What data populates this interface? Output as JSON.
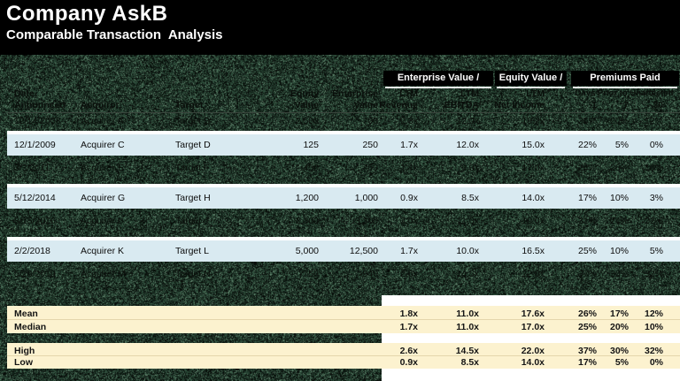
{
  "title": "Company AskB",
  "subtitle": "Comparable Transaction  Analysis",
  "colors": {
    "background": "#000000",
    "row_highlight": "#d9eaf1",
    "summary_highlight": "#fcf2cf",
    "noise_green": "#33503f",
    "header_box": "#000000",
    "header_text": "#ffffff"
  },
  "groups": {
    "enterprise": "Enterprise Value /",
    "equity": "Equity Value /",
    "premiums": "Premiums Paid"
  },
  "header": {
    "date1": "Date",
    "date2": "Announced",
    "acquiror": "Acquiror",
    "target": "Target",
    "equity1": "Equity",
    "equity2": "Value",
    "ev1": "Enterprise",
    "ev2": "Value",
    "rev1": "LTM",
    "rev2": "Revenue",
    "ebitda1": "LTM",
    "ebitda2": "EBITDA",
    "ni1": "LTM",
    "ni2": "Net Income",
    "premiums_note": "Days Prior to Unaffected",
    "d1": "1",
    "d7": "7",
    "d30": "30"
  },
  "rows": [
    {
      "hidden": true,
      "date": "12/14/2008",
      "acquirer": "Acquirer A",
      "target": "Target B",
      "equity_value": "2,500",
      "transaction_value": "700",
      "ev_revenue": "2.3x",
      "ev_ebitda": "12.0x",
      "pe": "19.7x",
      "prem_1": "26%",
      "prem_7": "20%",
      "prem_30": "12%"
    },
    {
      "hidden": false,
      "date": "12/1/2009",
      "acquirer": "Acquirer C",
      "target": "Target D",
      "equity_value": "125",
      "transaction_value": "250",
      "ev_revenue": "1.7x",
      "ev_ebitda": "12.0x",
      "pe": "15.0x",
      "prem_1": "22%",
      "prem_7": "5%",
      "prem_30": "0%"
    },
    {
      "hidden": true,
      "date": "3/3/2011",
      "acquirer": "Acquirer E",
      "target": "Target F",
      "equity_value": "450",
      "transaction_value": "700",
      "ev_revenue": "1.4x",
      "ev_ebitda": "9.0x",
      "pe": "17.0x",
      "prem_1": "24%",
      "prem_7": "20%",
      "prem_30": "10%"
    },
    {
      "hidden": false,
      "date": "5/12/2014",
      "acquirer": "Acquirer G",
      "target": "Target H",
      "equity_value": "1,200",
      "transaction_value": "1,000",
      "ev_revenue": "0.9x",
      "ev_ebitda": "8.5x",
      "pe": "14.0x",
      "prem_1": "17%",
      "prem_7": "10%",
      "prem_30": "3%"
    },
    {
      "hidden": true,
      "date": "8/15/2016",
      "acquirer": "Acquirer I",
      "target": "Target J",
      "equity_value": "2,300",
      "transaction_value": "3,300",
      "ev_revenue": "2.0x",
      "ev_ebitda": "11.0x",
      "pe": "19.0x",
      "prem_1": "31%",
      "prem_7": "24%",
      "prem_30": "22%"
    },
    {
      "hidden": false,
      "date": "2/2/2018",
      "acquirer": "Acquirer K",
      "target": "Target L",
      "equity_value": "5,000",
      "transaction_value": "12,500",
      "ev_revenue": "1.7x",
      "ev_ebitda": "10.0x",
      "pe": "16.5x",
      "prem_1": "25%",
      "prem_7": "10%",
      "prem_30": "5%"
    },
    {
      "hidden": true,
      "date": "5/25/2019",
      "acquirer": "Acquirer M",
      "target": "Target N",
      "equity_value": "750",
      "transaction_value": "940",
      "ev_revenue": "2.6x",
      "ev_ebitda": "14.5x",
      "pe": "22.0x",
      "prem_1": "37%",
      "prem_7": "30%",
      "prem_30": "32%"
    }
  ],
  "summary": [
    {
      "label": "Mean",
      "ev_revenue": "1.8x",
      "ev_ebitda": "11.0x",
      "pe": "17.6x",
      "prem_1": "26%",
      "prem_7": "17%",
      "prem_30": "12%"
    },
    {
      "label": "Median",
      "ev_revenue": "1.7x",
      "ev_ebitda": "11.0x",
      "pe": "17.0x",
      "prem_1": "25%",
      "prem_7": "20%",
      "prem_30": "10%"
    },
    {
      "label": "High",
      "ev_revenue": "2.6x",
      "ev_ebitda": "14.5x",
      "pe": "22.0x",
      "prem_1": "37%",
      "prem_7": "30%",
      "prem_30": "32%"
    },
    {
      "label": "Low",
      "ev_revenue": "0.9x",
      "ev_ebitda": "8.5x",
      "pe": "14.0x",
      "prem_1": "17%",
      "prem_7": "5%",
      "prem_30": "0%"
    }
  ]
}
